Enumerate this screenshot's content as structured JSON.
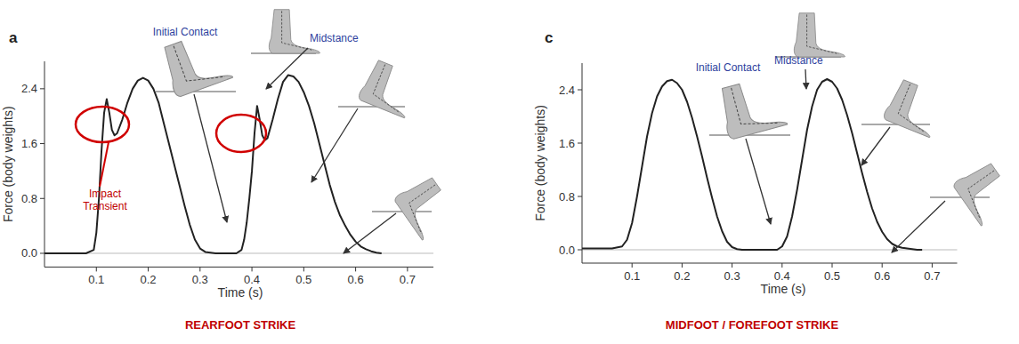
{
  "chart_data": [
    {
      "type": "line",
      "panel_label": "a",
      "title": "REARFOOT STRIKE",
      "x_label": "Time (s)",
      "y_label": "Force (body weights)",
      "annotations": [
        "Initial Contact",
        "Midstance",
        "Impact Transient"
      ],
      "color": "#222222",
      "x": [
        0,
        0.08,
        0.095,
        0.1,
        0.105,
        0.11,
        0.115,
        0.12,
        0.125,
        0.13,
        0.135,
        0.14,
        0.15,
        0.16,
        0.17,
        0.18,
        0.19,
        0.2,
        0.21,
        0.22,
        0.23,
        0.24,
        0.25,
        0.26,
        0.27,
        0.28,
        0.29,
        0.3,
        0.31,
        0.33,
        0.37,
        0.38,
        0.385,
        0.39,
        0.395,
        0.4,
        0.405,
        0.41,
        0.415,
        0.42,
        0.425,
        0.43,
        0.44,
        0.45,
        0.46,
        0.47,
        0.48,
        0.49,
        0.5,
        0.51,
        0.52,
        0.53,
        0.54,
        0.55,
        0.56,
        0.57,
        0.58,
        0.59,
        0.6,
        0.61,
        0.62,
        0.63,
        0.64,
        0.65
      ],
      "values": [
        0,
        0,
        0.05,
        0.3,
        0.8,
        1.5,
        2.05,
        2.25,
        2.05,
        1.8,
        1.72,
        1.75,
        1.95,
        2.2,
        2.4,
        2.52,
        2.56,
        2.52,
        2.4,
        2.2,
        1.9,
        1.6,
        1.3,
        1.0,
        0.7,
        0.42,
        0.2,
        0.07,
        0.02,
        0,
        0,
        0.05,
        0.2,
        0.45,
        0.8,
        1.2,
        1.75,
        2.15,
        1.95,
        1.72,
        1.65,
        1.68,
        1.95,
        2.25,
        2.5,
        2.6,
        2.58,
        2.5,
        2.35,
        2.15,
        1.9,
        1.6,
        1.3,
        1.0,
        0.75,
        0.55,
        0.4,
        0.27,
        0.17,
        0.1,
        0.06,
        0.03,
        0.01,
        0
      ],
      "xlim": [
        0,
        0.75
      ],
      "ylim": [
        -0.2,
        2.8
      ],
      "xticks": [
        0.1,
        0.2,
        0.3,
        0.4,
        0.5,
        0.6,
        0.7
      ],
      "yticks": [
        {
          "value": 0,
          "label": "0.0"
        },
        {
          "value": 0.8,
          "label": "0.8"
        },
        {
          "value": 1.6,
          "label": "1.6"
        },
        {
          "value": 2.4,
          "label": "2.4"
        }
      ]
    },
    {
      "type": "line",
      "panel_label": "c",
      "title": "MIDFOOT / FOREFOOT STRIKE",
      "x_label": "Time (s)",
      "y_label": "Force (body weights)",
      "annotations": [
        "Initial Contact",
        "Midstance"
      ],
      "color": "#222222",
      "x": [
        0,
        0.06,
        0.08,
        0.09,
        0.1,
        0.11,
        0.12,
        0.13,
        0.14,
        0.15,
        0.16,
        0.17,
        0.18,
        0.19,
        0.2,
        0.21,
        0.22,
        0.23,
        0.24,
        0.25,
        0.26,
        0.27,
        0.28,
        0.29,
        0.3,
        0.31,
        0.32,
        0.39,
        0.4,
        0.41,
        0.42,
        0.43,
        0.44,
        0.45,
        0.46,
        0.47,
        0.48,
        0.49,
        0.5,
        0.51,
        0.52,
        0.53,
        0.54,
        0.55,
        0.56,
        0.57,
        0.58,
        0.59,
        0.6,
        0.61,
        0.62,
        0.63,
        0.64,
        0.65,
        0.66,
        0.67,
        0.68
      ],
      "values": [
        0.02,
        0.02,
        0.05,
        0.15,
        0.4,
        0.8,
        1.25,
        1.7,
        2.05,
        2.3,
        2.45,
        2.53,
        2.55,
        2.5,
        2.4,
        2.22,
        1.98,
        1.7,
        1.4,
        1.08,
        0.78,
        0.5,
        0.28,
        0.12,
        0.04,
        0.01,
        0,
        0,
        0.05,
        0.2,
        0.5,
        0.9,
        1.35,
        1.8,
        2.15,
        2.4,
        2.52,
        2.56,
        2.52,
        2.42,
        2.25,
        2.02,
        1.75,
        1.45,
        1.15,
        0.87,
        0.62,
        0.42,
        0.27,
        0.16,
        0.09,
        0.05,
        0.03,
        0.02,
        0.01,
        0,
        0
      ],
      "xlim": [
        0,
        0.75
      ],
      "ylim": [
        -0.2,
        2.8
      ],
      "xticks": [
        0.1,
        0.2,
        0.3,
        0.4,
        0.5,
        0.6,
        0.7
      ],
      "yticks": [
        {
          "value": 0,
          "label": "0.0"
        },
        {
          "value": 0.8,
          "label": "0.8"
        },
        {
          "value": 1.6,
          "label": "1.6"
        },
        {
          "value": 2.4,
          "label": "2.4"
        }
      ]
    }
  ]
}
